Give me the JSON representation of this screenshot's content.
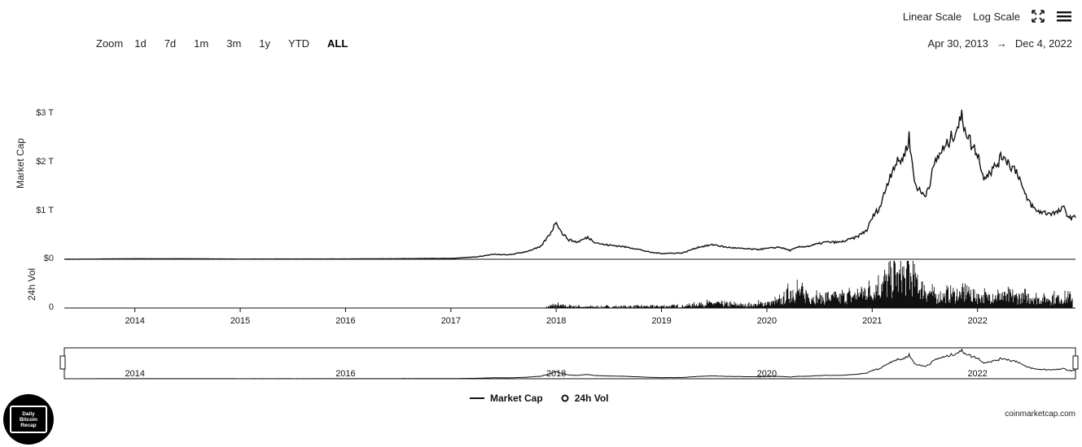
{
  "toolbar": {
    "zoom_label": "Zoom",
    "ranges": [
      "1d",
      "7d",
      "1m",
      "3m",
      "1y",
      "YTD",
      "ALL"
    ],
    "active_range": "ALL",
    "linear_scale": "Linear Scale",
    "log_scale": "Log Scale"
  },
  "date_range": {
    "from": "Apr 30, 2013",
    "arrow": "→",
    "to": "Dec 4, 2022"
  },
  "legend": {
    "market_cap": "Market Cap",
    "volume": "24h Vol"
  },
  "credit": "coinmarketcap.com",
  "logo_text": [
    "Daily",
    "Bitcoin",
    "Recap"
  ],
  "chart_data": {
    "type": "line",
    "x_range": [
      "2013-04-30",
      "2022-12-04"
    ],
    "x_ticks": [
      "2014",
      "2015",
      "2016",
      "2017",
      "2018",
      "2019",
      "2020",
      "2021",
      "2022"
    ],
    "navigator_ticks": [
      "2014",
      "2016",
      "2018",
      "2020",
      "2022"
    ],
    "y_axes": [
      {
        "title": "Market Cap",
        "ticks": [
          "$0",
          "$1 T",
          "$2 T",
          "$3 T"
        ],
        "ylim": [
          0,
          3
        ],
        "unit": "T USD"
      },
      {
        "title": "24h Vol",
        "ticks": [
          "0"
        ]
      }
    ],
    "series": [
      {
        "name": "Market Cap",
        "unit": "T USD",
        "x": [
          2013.33,
          2014.0,
          2014.5,
          2015.0,
          2016.0,
          2017.0,
          2017.25,
          2017.4,
          2017.55,
          2017.7,
          2017.85,
          2017.95,
          2018.0,
          2018.05,
          2018.12,
          2018.2,
          2018.3,
          2018.37,
          2018.45,
          2018.6,
          2018.75,
          2018.9,
          2019.0,
          2019.2,
          2019.35,
          2019.5,
          2019.6,
          2019.75,
          2019.9,
          2020.0,
          2020.12,
          2020.22,
          2020.3,
          2020.4,
          2020.55,
          2020.7,
          2020.85,
          2020.95,
          2021.0,
          2021.08,
          2021.15,
          2021.2,
          2021.25,
          2021.3,
          2021.35,
          2021.4,
          2021.45,
          2021.5,
          2021.55,
          2021.6,
          2021.65,
          2021.7,
          2021.78,
          2021.85,
          2021.9,
          2021.95,
          2022.0,
          2022.05,
          2022.15,
          2022.25,
          2022.3,
          2022.38,
          2022.45,
          2022.55,
          2022.65,
          2022.75,
          2022.82,
          2022.87,
          2022.93
        ],
        "y": [
          0.0,
          0.01,
          0.01,
          0.004,
          0.006,
          0.018,
          0.05,
          0.1,
          0.09,
          0.15,
          0.25,
          0.55,
          0.78,
          0.55,
          0.4,
          0.35,
          0.45,
          0.35,
          0.3,
          0.27,
          0.22,
          0.14,
          0.12,
          0.13,
          0.25,
          0.3,
          0.25,
          0.22,
          0.2,
          0.22,
          0.25,
          0.18,
          0.25,
          0.27,
          0.35,
          0.35,
          0.45,
          0.6,
          0.85,
          1.1,
          1.6,
          1.9,
          2.0,
          2.1,
          2.5,
          1.6,
          1.4,
          1.3,
          1.6,
          2.0,
          2.2,
          2.3,
          2.6,
          2.9,
          2.6,
          2.3,
          2.2,
          1.7,
          1.85,
          2.15,
          1.95,
          1.8,
          1.3,
          1.0,
          0.95,
          0.95,
          1.05,
          0.85,
          0.85
        ]
      },
      {
        "name": "24h Vol",
        "unit": "relative",
        "x": [
          2017.9,
          2018.0,
          2018.1,
          2018.3,
          2019.2,
          2019.4,
          2019.6,
          2019.8,
          2020.0,
          2020.15,
          2020.2,
          2020.3,
          2020.4,
          2020.6,
          2020.8,
          2021.0,
          2021.1,
          2021.2,
          2021.3,
          2021.35,
          2021.4,
          2021.5,
          2021.6,
          2021.8,
          2021.9,
          2022.0,
          2022.2,
          2022.4,
          2022.6,
          2022.8,
          2022.9
        ],
        "y": [
          0.02,
          0.08,
          0.05,
          0.03,
          0.05,
          0.12,
          0.1,
          0.08,
          0.12,
          0.2,
          0.35,
          0.45,
          0.3,
          0.25,
          0.3,
          0.45,
          0.6,
          0.75,
          0.8,
          0.9,
          0.7,
          0.45,
          0.3,
          0.35,
          0.4,
          0.3,
          0.3,
          0.3,
          0.25,
          0.25,
          0.25
        ]
      }
    ],
    "grid": false,
    "legend_position": "bottom-center"
  }
}
